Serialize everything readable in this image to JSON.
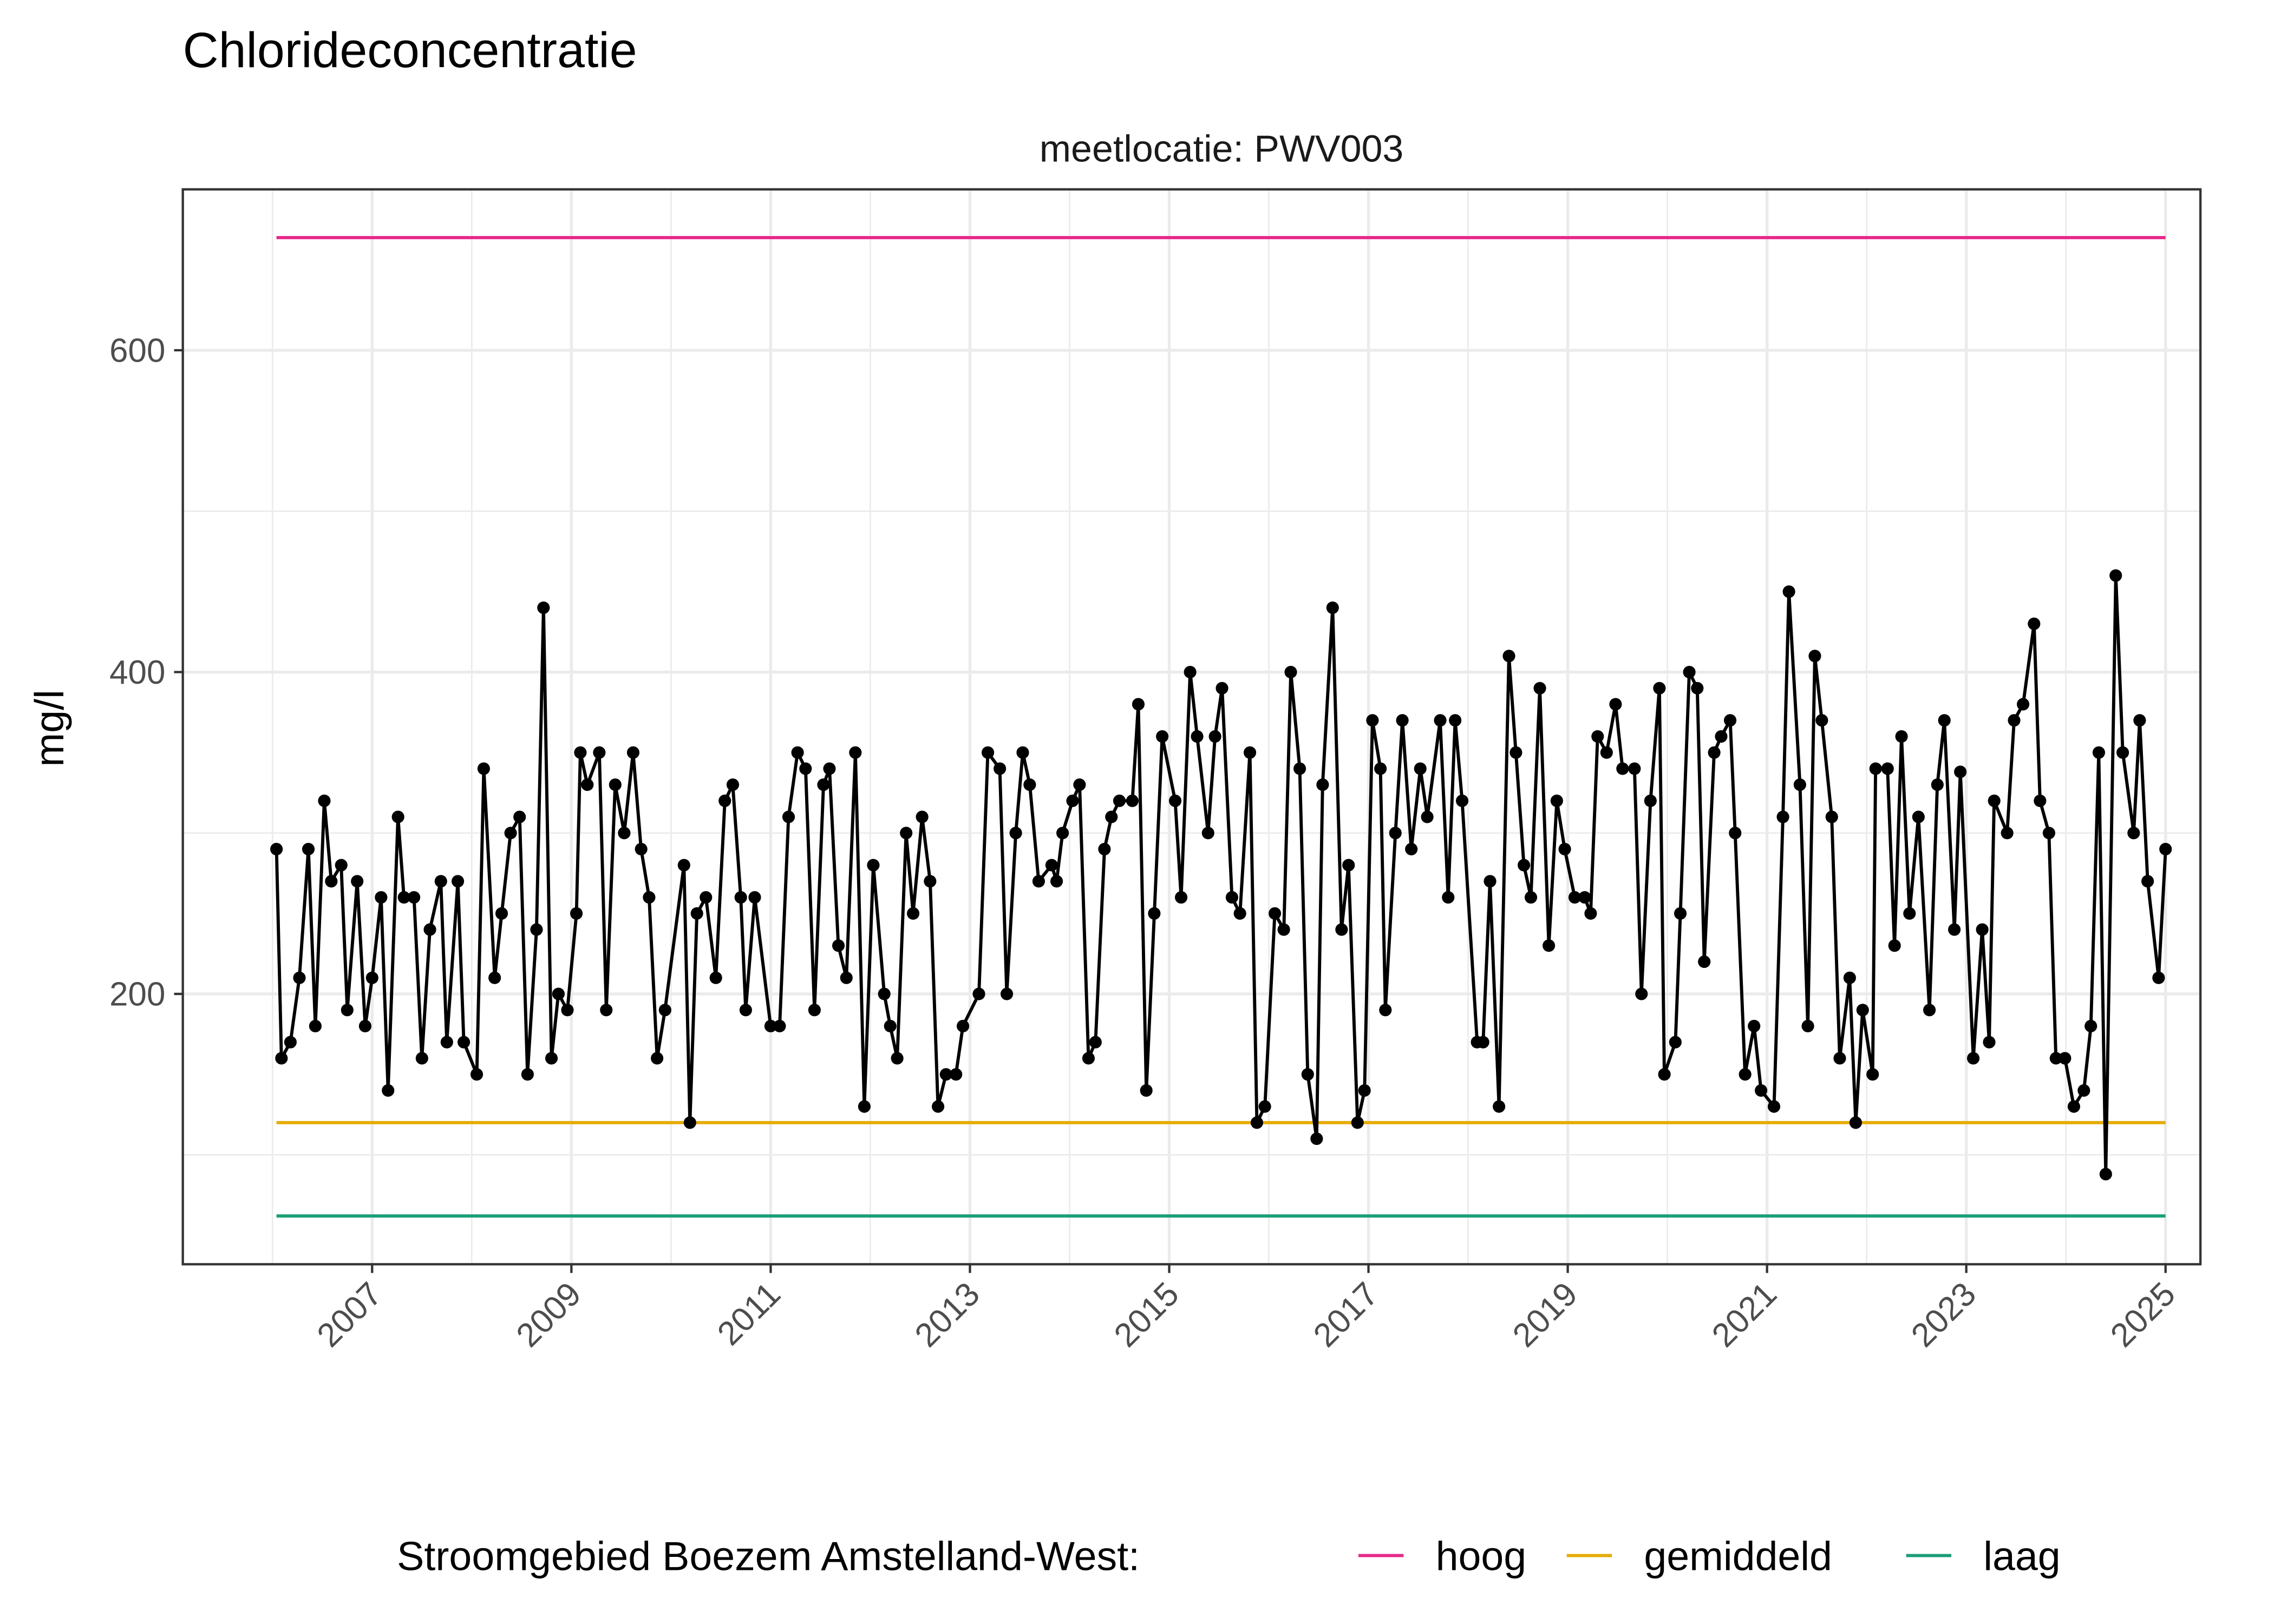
{
  "chart_data": {
    "type": "line",
    "title": "Chlorideconcentratie",
    "facet_label": "meetlocatie: PWV003",
    "xlabel": "",
    "ylabel": "mg/l",
    "xlim": [
      2005.1,
      2025.35
    ],
    "ylim": [
      32,
      700
    ],
    "x_ticks": [
      "2007",
      "2009",
      "2011",
      "2013",
      "2015",
      "2017",
      "2019",
      "2021",
      "2023",
      "2025"
    ],
    "y_ticks": [
      "200",
      "400",
      "600"
    ],
    "grid": true,
    "legend": {
      "position": "bottom",
      "title": "Stroomgebied Boezem Amstelland-West:",
      "entries": [
        {
          "label": "hoog",
          "color": "#E7298A"
        },
        {
          "label": "gemiddeld",
          "color": "#E6AB02"
        },
        {
          "label": "laag",
          "color": "#1B9E77"
        }
      ]
    },
    "reference_lines": [
      {
        "name": "hoog",
        "value": 670,
        "color": "#E7298A"
      },
      {
        "name": "gemiddeld",
        "value": 120,
        "color": "#E6AB02"
      },
      {
        "name": "laag",
        "value": 62,
        "color": "#1B9E77"
      }
    ],
    "series_color": "#000000",
    "points": [
      [
        2006.04,
        290
      ],
      [
        2006.09,
        160
      ],
      [
        2006.18,
        170
      ],
      [
        2006.27,
        210
      ],
      [
        2006.36,
        290
      ],
      [
        2006.43,
        180
      ],
      [
        2006.52,
        320
      ],
      [
        2006.59,
        270
      ],
      [
        2006.69,
        280
      ],
      [
        2006.75,
        190
      ],
      [
        2006.85,
        270
      ],
      [
        2006.93,
        180
      ],
      [
        2007.0,
        210
      ],
      [
        2007.09,
        260
      ],
      [
        2007.16,
        140
      ],
      [
        2007.26,
        310
      ],
      [
        2007.32,
        260
      ],
      [
        2007.42,
        260
      ],
      [
        2007.5,
        160
      ],
      [
        2007.58,
        240
      ],
      [
        2007.69,
        270
      ],
      [
        2007.75,
        170
      ],
      [
        2007.86,
        270
      ],
      [
        2007.92,
        170
      ],
      [
        2008.05,
        150
      ],
      [
        2008.12,
        340
      ],
      [
        2008.23,
        210
      ],
      [
        2008.3,
        250
      ],
      [
        2008.39,
        300
      ],
      [
        2008.48,
        310
      ],
      [
        2008.56,
        150
      ],
      [
        2008.65,
        240
      ],
      [
        2008.72,
        440
      ],
      [
        2008.8,
        160
      ],
      [
        2008.87,
        200
      ],
      [
        2008.96,
        190
      ],
      [
        2009.05,
        250
      ],
      [
        2009.09,
        350
      ],
      [
        2009.16,
        330
      ],
      [
        2009.28,
        350
      ],
      [
        2009.35,
        190
      ],
      [
        2009.44,
        330
      ],
      [
        2009.53,
        300
      ],
      [
        2009.62,
        350
      ],
      [
        2009.7,
        290
      ],
      [
        2009.78,
        260
      ],
      [
        2009.86,
        160
      ],
      [
        2009.94,
        190
      ],
      [
        2010.13,
        280
      ],
      [
        2010.19,
        120
      ],
      [
        2010.26,
        250
      ],
      [
        2010.35,
        260
      ],
      [
        2010.45,
        210
      ],
      [
        2010.54,
        320
      ],
      [
        2010.62,
        330
      ],
      [
        2010.7,
        260
      ],
      [
        2010.75,
        190
      ],
      [
        2010.84,
        260
      ],
      [
        2011.0,
        180
      ],
      [
        2011.09,
        180
      ],
      [
        2011.18,
        310
      ],
      [
        2011.27,
        350
      ],
      [
        2011.35,
        340
      ],
      [
        2011.44,
        190
      ],
      [
        2011.53,
        330
      ],
      [
        2011.59,
        340
      ],
      [
        2011.68,
        230
      ],
      [
        2011.76,
        210
      ],
      [
        2011.85,
        350
      ],
      [
        2011.94,
        130
      ],
      [
        2012.03,
        280
      ],
      [
        2012.14,
        200
      ],
      [
        2012.2,
        180
      ],
      [
        2012.27,
        160
      ],
      [
        2012.36,
        300
      ],
      [
        2012.43,
        250
      ],
      [
        2012.52,
        310
      ],
      [
        2012.6,
        270
      ],
      [
        2012.68,
        130
      ],
      [
        2012.76,
        150
      ],
      [
        2012.86,
        150
      ],
      [
        2012.93,
        180
      ],
      [
        2013.09,
        200
      ],
      [
        2013.18,
        350
      ],
      [
        2013.3,
        340
      ],
      [
        2013.37,
        200
      ],
      [
        2013.46,
        300
      ],
      [
        2013.53,
        350
      ],
      [
        2013.6,
        330
      ],
      [
        2013.69,
        270
      ],
      [
        2013.82,
        280
      ],
      [
        2013.87,
        270
      ],
      [
        2013.93,
        300
      ],
      [
        2014.03,
        320
      ],
      [
        2014.1,
        330
      ],
      [
        2014.19,
        160
      ],
      [
        2014.26,
        170
      ],
      [
        2014.35,
        290
      ],
      [
        2014.42,
        310
      ],
      [
        2014.5,
        320
      ],
      [
        2014.63,
        320
      ],
      [
        2014.69,
        380
      ],
      [
        2014.77,
        140
      ],
      [
        2014.85,
        250
      ],
      [
        2014.93,
        360
      ],
      [
        2015.06,
        320
      ],
      [
        2015.12,
        260
      ],
      [
        2015.21,
        400
      ],
      [
        2015.28,
        360
      ],
      [
        2015.39,
        300
      ],
      [
        2015.46,
        360
      ],
      [
        2015.53,
        390
      ],
      [
        2015.63,
        260
      ],
      [
        2015.71,
        250
      ],
      [
        2015.81,
        350
      ],
      [
        2015.88,
        120
      ],
      [
        2015.96,
        130
      ],
      [
        2016.06,
        250
      ],
      [
        2016.15,
        240
      ],
      [
        2016.22,
        400
      ],
      [
        2016.31,
        340
      ],
      [
        2016.39,
        150
      ],
      [
        2016.48,
        110
      ],
      [
        2016.54,
        330
      ],
      [
        2016.64,
        440
      ],
      [
        2016.73,
        240
      ],
      [
        2016.8,
        280
      ],
      [
        2016.89,
        120
      ],
      [
        2016.96,
        140
      ],
      [
        2017.04,
        370
      ],
      [
        2017.12,
        340
      ],
      [
        2017.17,
        190
      ],
      [
        2017.27,
        300
      ],
      [
        2017.34,
        370
      ],
      [
        2017.43,
        290
      ],
      [
        2017.52,
        340
      ],
      [
        2017.59,
        310
      ],
      [
        2017.72,
        370
      ],
      [
        2017.8,
        260
      ],
      [
        2017.87,
        370
      ],
      [
        2017.94,
        320
      ],
      [
        2018.09,
        170
      ],
      [
        2018.15,
        170
      ],
      [
        2018.22,
        270
      ],
      [
        2018.31,
        130
      ],
      [
        2018.41,
        410
      ],
      [
        2018.48,
        350
      ],
      [
        2018.56,
        280
      ],
      [
        2018.63,
        260
      ],
      [
        2018.72,
        390
      ],
      [
        2018.81,
        230
      ],
      [
        2018.89,
        320
      ],
      [
        2018.97,
        290
      ],
      [
        2019.07,
        260
      ],
      [
        2019.17,
        260
      ],
      [
        2019.23,
        250
      ],
      [
        2019.3,
        360
      ],
      [
        2019.39,
        350
      ],
      [
        2019.48,
        380
      ],
      [
        2019.55,
        340
      ],
      [
        2019.67,
        340
      ],
      [
        2019.74,
        200
      ],
      [
        2019.83,
        320
      ],
      [
        2019.92,
        390
      ],
      [
        2019.97,
        150
      ],
      [
        2020.08,
        170
      ],
      [
        2020.13,
        250
      ],
      [
        2020.22,
        400
      ],
      [
        2020.3,
        390
      ],
      [
        2020.37,
        220
      ],
      [
        2020.47,
        350
      ],
      [
        2020.54,
        360
      ],
      [
        2020.63,
        370
      ],
      [
        2020.68,
        300
      ],
      [
        2020.78,
        150
      ],
      [
        2020.87,
        180
      ],
      [
        2020.94,
        140
      ],
      [
        2021.07,
        130
      ],
      [
        2021.16,
        310
      ],
      [
        2021.22,
        450
      ],
      [
        2021.33,
        330
      ],
      [
        2021.41,
        180
      ],
      [
        2021.48,
        410
      ],
      [
        2021.55,
        370
      ],
      [
        2021.65,
        310
      ],
      [
        2021.73,
        160
      ],
      [
        2021.83,
        210
      ],
      [
        2021.89,
        120
      ],
      [
        2021.96,
        190
      ],
      [
        2022.06,
        150
      ],
      [
        2022.09,
        340
      ],
      [
        2022.21,
        340
      ],
      [
        2022.28,
        230
      ],
      [
        2022.35,
        360
      ],
      [
        2022.43,
        250
      ],
      [
        2022.52,
        310
      ],
      [
        2022.63,
        190
      ],
      [
        2022.71,
        330
      ],
      [
        2022.78,
        370
      ],
      [
        2022.88,
        240
      ],
      [
        2022.94,
        338
      ],
      [
        2023.07,
        160
      ],
      [
        2023.16,
        240
      ],
      [
        2023.23,
        170
      ],
      [
        2023.28,
        320
      ],
      [
        2023.41,
        300
      ],
      [
        2023.48,
        370
      ],
      [
        2023.57,
        380
      ],
      [
        2023.68,
        430
      ],
      [
        2023.74,
        320
      ],
      [
        2023.83,
        300
      ],
      [
        2023.9,
        160
      ],
      [
        2023.99,
        160
      ],
      [
        2024.08,
        130
      ],
      [
        2024.18,
        140
      ],
      [
        2024.25,
        180
      ],
      [
        2024.33,
        350
      ],
      [
        2024.4,
        88
      ],
      [
        2024.5,
        460
      ],
      [
        2024.57,
        350
      ],
      [
        2024.68,
        300
      ],
      [
        2024.74,
        370
      ],
      [
        2024.82,
        270
      ],
      [
        2024.93,
        210
      ],
      [
        2025.0,
        290
      ]
    ]
  }
}
